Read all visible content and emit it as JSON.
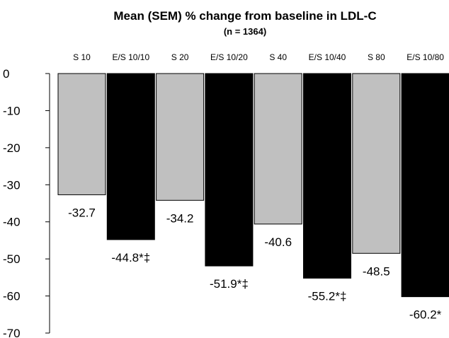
{
  "chart_data": {
    "type": "bar",
    "title": "Mean (SEM) % change from baseline in LDL-C",
    "subtitle": "(n = 1364)",
    "xlabel": "",
    "ylabel": "",
    "categories": [
      "S 10",
      "E/S 10/10",
      "S 20",
      "E/S 10/20",
      "S 40",
      "E/S 10/40",
      "S 80",
      "E/S 10/80"
    ],
    "values": [
      -32.7,
      -44.8,
      -34.2,
      -51.9,
      -40.6,
      -55.2,
      -48.5,
      -60.2
    ],
    "data_labels": [
      "-32.7",
      "-44.8*‡",
      "-34.2",
      "-51.9*‡",
      "-40.6",
      "-55.2*‡",
      "-48.5",
      "-60.2*"
    ],
    "bar_colors": [
      "#c0c0c0",
      "#000000",
      "#c0c0c0",
      "#000000",
      "#c0c0c0",
      "#000000",
      "#c0c0c0",
      "#000000"
    ],
    "ylim": [
      -70,
      0
    ],
    "yticks": [
      "0",
      "-10",
      "-20",
      "-30",
      "-40",
      "-50",
      "-60",
      "-70"
    ],
    "category_labels_position": "top",
    "grid": false,
    "legend": "none"
  }
}
